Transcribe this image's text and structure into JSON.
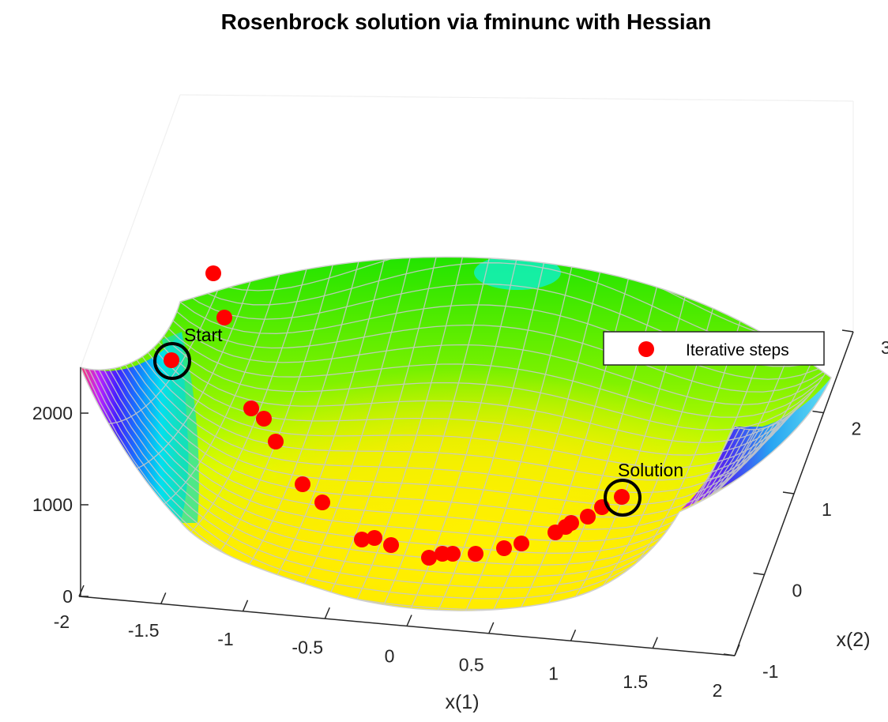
{
  "chart_data": {
    "type": "surface",
    "title": "Rosenbrock solution via fminunc with Hessian",
    "xlabel": "x(1)",
    "ylabel": "x(2)",
    "zlabel": "",
    "xlim": [
      -2,
      2
    ],
    "ylim": [
      -1,
      3
    ],
    "zlim": [
      0,
      2500
    ],
    "x_ticks": [
      "-2",
      "-1.5",
      "-1",
      "-0.5",
      "0",
      "0.5",
      "1",
      "1.5",
      "2"
    ],
    "y_ticks": [
      "-1",
      "0",
      "1",
      "2",
      "3"
    ],
    "z_ticks": [
      "0",
      "1000",
      "2000"
    ],
    "surface_function": "100*(x2 - x1^2)^2 + (1 - x1)^2",
    "colormap": "hsv",
    "series": [
      {
        "name": "Iterative steps",
        "marker": "circle",
        "color": "#ff0000",
        "points": [
          {
            "x": -1.9,
            "y": 2,
            "z": 267.62
          },
          {
            "x": -1.79,
            "y": 3.2,
            "z": 8.96
          },
          {
            "x": -1.65,
            "y": 2.7,
            "z": 7.1
          },
          {
            "x": -1.3,
            "y": 1.65,
            "z": 5.3
          },
          {
            "x": -1.15,
            "y": 1.3,
            "z": 4.65
          },
          {
            "x": -0.95,
            "y": 0.87,
            "z": 3.85
          },
          {
            "x": -0.75,
            "y": 0.53,
            "z": 3.1
          },
          {
            "x": -0.55,
            "y": 0.27,
            "z": 2.45
          },
          {
            "x": -0.35,
            "y": 0.08,
            "z": 1.9
          },
          {
            "x": -0.18,
            "y": -0.01,
            "z": 1.45
          },
          {
            "x": -0.08,
            "y": -0.02,
            "z": 1.2
          },
          {
            "x": 0.08,
            "y": -0.01,
            "z": 0.9
          },
          {
            "x": 0.18,
            "y": 0.02,
            "z": 0.7
          },
          {
            "x": 0.28,
            "y": 0.06,
            "z": 0.55
          },
          {
            "x": 0.42,
            "y": 0.15,
            "z": 0.4
          },
          {
            "x": 0.58,
            "y": 0.32,
            "z": 0.2
          },
          {
            "x": 0.7,
            "y": 0.48,
            "z": 0.1
          },
          {
            "x": 0.8,
            "y": 0.63,
            "z": 0.05
          },
          {
            "x": 0.86,
            "y": 0.73,
            "z": 0.03
          },
          {
            "x": 0.91,
            "y": 0.83,
            "z": 0.01
          },
          {
            "x": 0.96,
            "y": 0.92,
            "z": 0.003
          },
          {
            "x": 0.99,
            "y": 0.98,
            "z": 0.0002
          },
          {
            "x": 1.0,
            "y": 1.0,
            "z": 0
          }
        ]
      }
    ],
    "annotations": [
      {
        "text": "Start",
        "x": -1.9,
        "y": 2,
        "z": 267.62
      },
      {
        "text": "Solution",
        "x": 1,
        "y": 1,
        "z": 0
      }
    ],
    "legend_position": "top-right"
  }
}
